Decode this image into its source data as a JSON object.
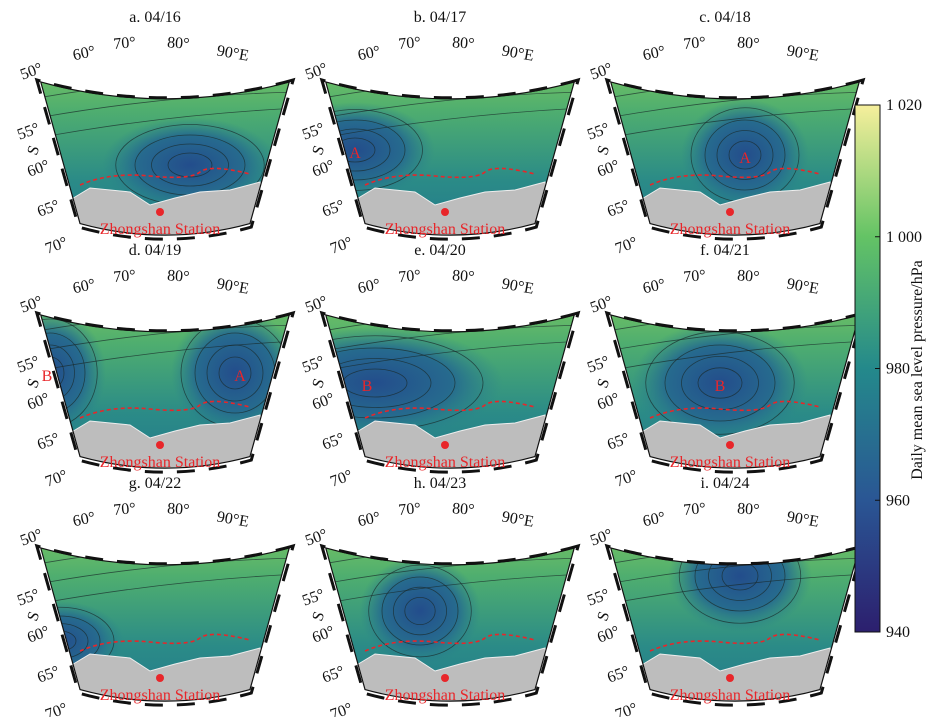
{
  "panels": [
    {
      "title": "a. 04/16",
      "markers": []
    },
    {
      "title": "b. 04/17",
      "markers": [
        "A"
      ]
    },
    {
      "title": "c. 04/18",
      "markers": [
        "A"
      ]
    },
    {
      "title": "d. 04/19",
      "markers": [
        "B",
        "A"
      ]
    },
    {
      "title": "e. 04/20",
      "markers": [
        "B"
      ]
    },
    {
      "title": "f. 04/21",
      "markers": [
        "B"
      ]
    },
    {
      "title": "g. 04/22",
      "markers": []
    },
    {
      "title": "h. 04/23",
      "markers": []
    },
    {
      "title": "i. 04/24",
      "markers": []
    }
  ],
  "longitude_labels": [
    "60°",
    "70°",
    "80°",
    "90°E"
  ],
  "latitude_labels": [
    "50°",
    "55°",
    "60°",
    "65°",
    "70°"
  ],
  "latitude_hemisphere": "S",
  "station_label": "Zhongshan Station",
  "colorbar": {
    "label": "Daily mean sea level pressure/hPa",
    "lim": [
      940,
      1020
    ],
    "ticks": [
      940,
      960,
      980,
      {
        "value": 1000,
        "label": "1 000"
      },
      {
        "value": 1020,
        "label": "1 020"
      }
    ]
  }
}
